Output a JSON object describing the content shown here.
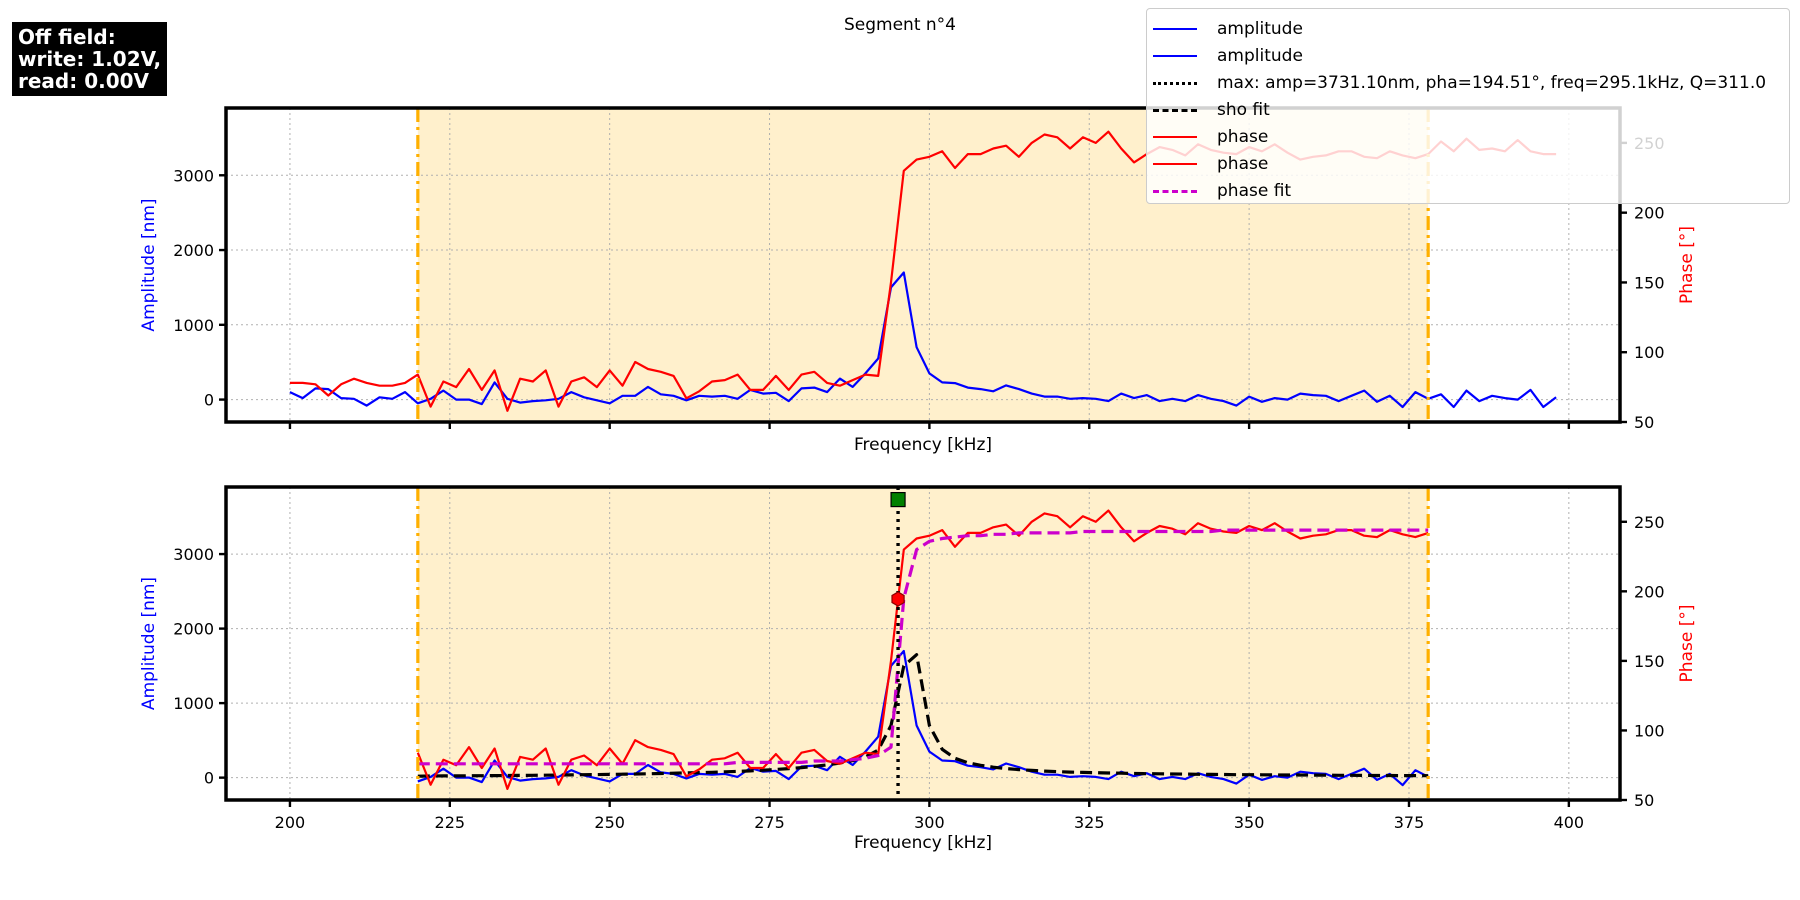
{
  "status": {
    "lines": [
      "Off field:",
      "write: 1.02V,",
      "read: 0.00V"
    ]
  },
  "figure_title": "Segment n°4",
  "legend": [
    {
      "label": "amplitude",
      "color": "#0000ff",
      "style": "solid"
    },
    {
      "label": "amplitude",
      "color": "#0000ff",
      "style": "solid"
    },
    {
      "label": "max: amp=3731.10nm, pha=194.51°, freq=295.1kHz, Q=311.0",
      "color": "#000000",
      "style": "dotted"
    },
    {
      "label": "sho fit",
      "color": "#000000",
      "style": "dashed"
    },
    {
      "label": "phase",
      "color": "#ff0000",
      "style": "solid"
    },
    {
      "label": "phase",
      "color": "#ff0000",
      "style": "solid"
    },
    {
      "label": "phase fit",
      "color": "#cc00cc",
      "style": "dashed"
    }
  ],
  "colors": {
    "amplitude": "#0000ff",
    "phase": "#ff0000",
    "sho_fit": "#000000",
    "phase_fit": "#cc00cc",
    "shade": "#fff0cc",
    "boundary": "#ffb000",
    "max_marker": "#008000",
    "phase_marker": "#ff0000"
  },
  "chart_data": [
    {
      "type": "line",
      "title": "",
      "xlabel": "Frequency [kHz]",
      "ylabel": "Amplitude [nm]",
      "y2label": "Phase [°]",
      "xlim": [
        190,
        408
      ],
      "ylim": [
        -300,
        3900
      ],
      "y2lim": [
        50,
        275
      ],
      "xticks": [
        200,
        225,
        250,
        275,
        300,
        325,
        350,
        375,
        400
      ],
      "yticks": [
        0,
        1000,
        2000,
        3000
      ],
      "y2ticks": [
        50,
        100,
        150,
        200,
        250
      ],
      "show_xtick_labels": false,
      "grid": true,
      "shaded_region": [
        220,
        378
      ],
      "boundaries": [
        220,
        378
      ],
      "x": [
        200,
        202,
        204,
        206,
        208,
        210,
        212,
        214,
        216,
        218,
        220,
        222,
        224,
        226,
        228,
        230,
        232,
        234,
        236,
        238,
        240,
        242,
        244,
        246,
        248,
        250,
        252,
        254,
        256,
        258,
        260,
        262,
        264,
        266,
        268,
        270,
        272,
        274,
        276,
        278,
        280,
        282,
        284,
        286,
        288,
        290,
        292,
        294,
        296,
        298,
        300,
        302,
        304,
        306,
        308,
        310,
        312,
        314,
        316,
        318,
        320,
        322,
        324,
        326,
        328,
        330,
        332,
        334,
        336,
        338,
        340,
        342,
        344,
        346,
        348,
        350,
        352,
        354,
        356,
        358,
        360,
        362,
        364,
        366,
        368,
        370,
        372,
        374,
        376,
        378,
        380,
        382,
        384,
        386,
        388,
        390,
        392,
        394,
        396,
        398
      ],
      "series": [
        {
          "axis": "left",
          "key": "amplitude",
          "values": [
            100,
            20,
            150,
            140,
            20,
            10,
            -80,
            30,
            10,
            100,
            -50,
            10,
            120,
            0,
            0,
            -60,
            230,
            10,
            -40,
            -20,
            -10,
            10,
            100,
            30,
            -10,
            -50,
            50,
            50,
            170,
            70,
            50,
            -10,
            50,
            40,
            50,
            10,
            130,
            80,
            90,
            -20,
            150,
            160,
            100,
            280,
            170,
            350,
            550,
            1500,
            1700,
            700,
            350,
            230,
            220,
            160,
            140,
            110,
            190,
            140,
            80,
            40,
            40,
            10,
            20,
            10,
            -20,
            80,
            20,
            60,
            -20,
            10,
            -20,
            60,
            10,
            -20,
            -80,
            40,
            -30,
            20,
            0,
            80,
            60,
            50,
            -20,
            50,
            120,
            -30,
            50,
            -100,
            100,
            10,
            70,
            -100,
            120,
            -20,
            50,
            20,
            0,
            130,
            -100,
            30
          ]
        },
        {
          "axis": "right",
          "key": "phase",
          "values": [
            78,
            78,
            77,
            69,
            77,
            81,
            78,
            76,
            76,
            78,
            84,
            61,
            79,
            75,
            88,
            73,
            87,
            58,
            81,
            79,
            87,
            61,
            79,
            82,
            75,
            87,
            76,
            93,
            88,
            86,
            83,
            67,
            72,
            79,
            80,
            84,
            73,
            73,
            83,
            73,
            84,
            86,
            78,
            76,
            80,
            84,
            83,
            150,
            230,
            238,
            240,
            244,
            232,
            242,
            242,
            246,
            248,
            240,
            250,
            256,
            254,
            246,
            254,
            250,
            258,
            246,
            236,
            242,
            247,
            245,
            241,
            249,
            245,
            243,
            242,
            247,
            244,
            249,
            243,
            238,
            240,
            241,
            244,
            244,
            240,
            239,
            244,
            241,
            239,
            242,
            251,
            244,
            253,
            245,
            246,
            244,
            252,
            244,
            242,
            242
          ]
        }
      ]
    },
    {
      "type": "line",
      "title": "",
      "xlabel": "Frequency [kHz]",
      "ylabel": "Amplitude [nm]",
      "y2label": "Phase [°]",
      "xlim": [
        190,
        408
      ],
      "ylim": [
        -300,
        3900
      ],
      "y2lim": [
        50,
        275
      ],
      "xticks": [
        200,
        225,
        250,
        275,
        300,
        325,
        350,
        375,
        400
      ],
      "yticks": [
        0,
        1000,
        2000,
        3000
      ],
      "y2ticks": [
        50,
        100,
        150,
        200,
        250
      ],
      "show_xtick_labels": true,
      "grid": true,
      "shaded_region": [
        220,
        378
      ],
      "boundaries": [
        220,
        378
      ],
      "vline": 295.1,
      "markers": [
        {
          "x": 295.1,
          "y": 3731.1,
          "axis": "left",
          "shape": "square",
          "key": "max_marker"
        },
        {
          "x": 295.1,
          "y": 194.51,
          "axis": "right",
          "shape": "hexagon",
          "key": "phase_marker"
        }
      ],
      "x": [
        220,
        222,
        224,
        226,
        228,
        230,
        232,
        234,
        236,
        238,
        240,
        242,
        244,
        246,
        248,
        250,
        252,
        254,
        256,
        258,
        260,
        262,
        264,
        266,
        268,
        270,
        272,
        274,
        276,
        278,
        280,
        282,
        284,
        286,
        288,
        290,
        292,
        294,
        296,
        298,
        300,
        302,
        304,
        306,
        308,
        310,
        312,
        314,
        316,
        318,
        320,
        322,
        324,
        326,
        328,
        330,
        332,
        334,
        336,
        338,
        340,
        342,
        344,
        346,
        348,
        350,
        352,
        354,
        356,
        358,
        360,
        362,
        364,
        366,
        368,
        370,
        372,
        374,
        376,
        378
      ],
      "series": [
        {
          "axis": "left",
          "key": "amplitude",
          "values": [
            -50,
            10,
            120,
            0,
            0,
            -60,
            230,
            10,
            -40,
            -20,
            -10,
            10,
            100,
            30,
            -10,
            -50,
            50,
            50,
            170,
            70,
            50,
            -10,
            50,
            40,
            50,
            10,
            130,
            80,
            90,
            -20,
            150,
            160,
            100,
            280,
            170,
            350,
            550,
            1500,
            1700,
            700,
            350,
            230,
            220,
            160,
            140,
            110,
            190,
            140,
            80,
            40,
            40,
            10,
            20,
            10,
            -20,
            80,
            20,
            60,
            -20,
            10,
            -20,
            60,
            10,
            -20,
            -80,
            40,
            -30,
            20,
            0,
            80,
            60,
            50,
            -20,
            50,
            120,
            -30,
            50,
            -100,
            100,
            10
          ]
        },
        {
          "axis": "left",
          "key": "sho_fit",
          "values": [
            20,
            22,
            23,
            24,
            25,
            26,
            27,
            29,
            30,
            32,
            33,
            35,
            37,
            39,
            41,
            43,
            46,
            49,
            52,
            55,
            59,
            63,
            67,
            72,
            78,
            84,
            91,
            100,
            110,
            121,
            135,
            151,
            171,
            196,
            229,
            280,
            370,
            700,
            1500,
            1650,
            700,
            380,
            260,
            200,
            165,
            140,
            122,
            108,
            97,
            88,
            81,
            75,
            70,
            66,
            62,
            59,
            56,
            53,
            51,
            49,
            47,
            45,
            43,
            42,
            40,
            39,
            38,
            37,
            36,
            35,
            34,
            33,
            32,
            31,
            30,
            29,
            29,
            28,
            27,
            26
          ]
        },
        {
          "axis": "right",
          "key": "phase",
          "values": [
            84,
            61,
            79,
            75,
            88,
            73,
            87,
            58,
            81,
            79,
            87,
            61,
            79,
            82,
            75,
            87,
            76,
            93,
            88,
            86,
            83,
            67,
            72,
            79,
            80,
            84,
            73,
            73,
            83,
            73,
            84,
            86,
            78,
            76,
            80,
            84,
            83,
            150,
            230,
            238,
            240,
            244,
            232,
            242,
            242,
            246,
            248,
            240,
            250,
            256,
            254,
            246,
            254,
            250,
            258,
            246,
            236,
            242,
            247,
            245,
            241,
            249,
            245,
            243,
            242,
            247,
            244,
            249,
            243,
            238,
            240,
            241,
            244,
            244,
            240,
            239,
            244,
            241,
            239,
            242
          ]
        },
        {
          "axis": "right",
          "key": "phase_fit",
          "values": [
            76,
            76,
            76,
            76,
            76,
            76,
            76,
            76,
            76,
            76,
            76,
            76,
            76,
            76,
            76,
            76,
            76,
            76,
            76,
            76,
            76,
            76,
            76,
            76,
            76,
            77,
            77,
            77,
            77,
            77,
            77,
            78,
            78,
            78,
            79,
            80,
            82,
            88,
            195,
            230,
            236,
            238,
            239,
            240,
            240,
            241,
            241,
            242,
            242,
            242,
            242,
            242,
            243,
            243,
            243,
            243,
            243,
            243,
            243,
            243,
            243,
            243,
            243,
            244,
            244,
            244,
            244,
            244,
            244,
            244,
            244,
            244,
            244,
            244,
            244,
            244,
            244,
            244,
            244,
            244
          ]
        }
      ]
    }
  ]
}
